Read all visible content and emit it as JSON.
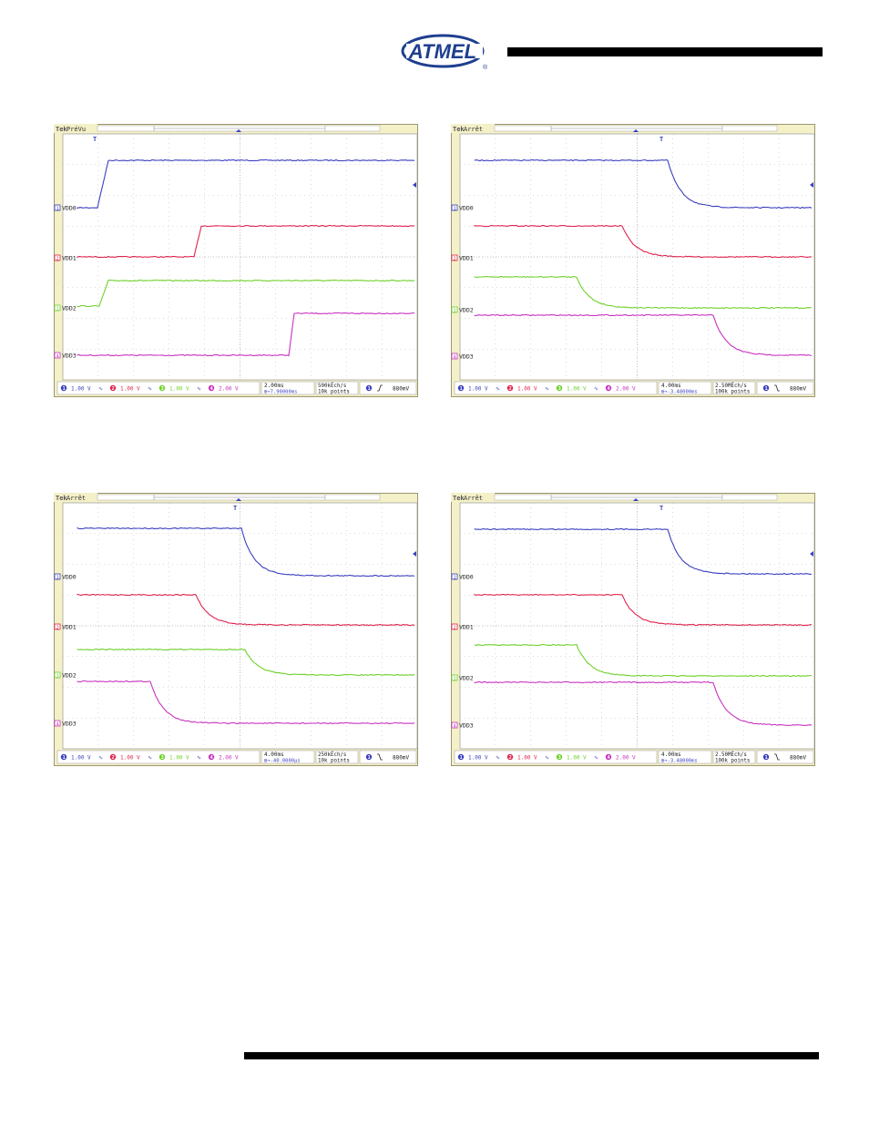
{
  "logo": {
    "text": "ATMEL",
    "registered": "®",
    "color": "#1e3f8f"
  },
  "colors": {
    "ch1": "#3a3fbf",
    "ch2": "#e0244e",
    "ch3": "#6fd02a",
    "ch4": "#c832c0",
    "grid": "#b8b8b8"
  },
  "scopes": [
    {
      "status": "PréVu",
      "channels": [
        {
          "label": "VDD0",
          "num": "1",
          "scale": "1.00 V"
        },
        {
          "label": "VDD1",
          "num": "2",
          "scale": "1.00 V"
        },
        {
          "label": "VDD2",
          "num": "3",
          "scale": "1.00 V"
        },
        {
          "label": "VDD3",
          "num": "4",
          "scale": "2.00 V"
        }
      ],
      "timebase": "2.00ms",
      "position": "→7.90000ms",
      "sample_rate": "500kÉch/s",
      "points": "10k points",
      "trigger_level": "880mV",
      "trigger_slope": "rising"
    },
    {
      "status": "Arrêt",
      "channels": [
        {
          "label": "VDD0",
          "num": "1",
          "scale": "1.00 V"
        },
        {
          "label": "VDD1",
          "num": "2",
          "scale": "1.00 V"
        },
        {
          "label": "VDD2",
          "num": "3",
          "scale": "1.00 V"
        },
        {
          "label": "VDD3",
          "num": "4",
          "scale": "2.00 V"
        }
      ],
      "timebase": "4.00ms",
      "position": "→-3.48000ms",
      "sample_rate": "2.50MÉch/s",
      "points": "100k points",
      "trigger_level": "880mV",
      "trigger_slope": "falling"
    },
    {
      "status": "Arrêt",
      "channels": [
        {
          "label": "VDD0",
          "num": "1",
          "scale": "1.00 V"
        },
        {
          "label": "VDD1",
          "num": "2",
          "scale": "1.00 V"
        },
        {
          "label": "VDD2",
          "num": "3",
          "scale": "1.00 V"
        },
        {
          "label": "VDD3",
          "num": "4",
          "scale": "2.00 V"
        }
      ],
      "timebase": "4.00ms",
      "position": "→-40.0000µs",
      "sample_rate": "250kÉch/s",
      "points": "10k points",
      "trigger_level": "880mV",
      "trigger_slope": "falling"
    },
    {
      "status": "Arrêt",
      "channels": [
        {
          "label": "VDD0",
          "num": "1",
          "scale": "1.00 V"
        },
        {
          "label": "VDD1",
          "num": "2",
          "scale": "1.00 V"
        },
        {
          "label": "VDD2",
          "num": "3",
          "scale": "1.00 V"
        },
        {
          "label": "VDD3",
          "num": "4",
          "scale": "2.00 V"
        }
      ],
      "timebase": "4.00ms",
      "position": "→-3.48000ms",
      "sample_rate": "2.50MÉch/s",
      "points": "100k points",
      "trigger_level": "880mV",
      "trigger_slope": "falling"
    }
  ]
}
